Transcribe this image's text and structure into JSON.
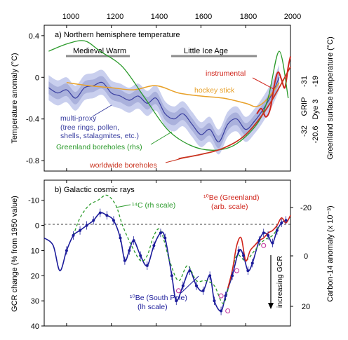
{
  "top_axis": {
    "ticks": [
      "1000",
      "1200",
      "1400",
      "1600",
      "1800",
      "2000"
    ]
  },
  "panel_a": {
    "title": "a) Northern hemisphere temperature",
    "ylabel_left": "Temperature anomaly (°C)",
    "ylabel_right": "Greenland surface temperature (°C)",
    "right_col_labels": [
      "GRIP",
      "Dye 3"
    ],
    "right_ticks_grip": [
      "-31",
      "-32"
    ],
    "right_ticks_dye3": [
      "-19",
      "-20.6"
    ],
    "bar_medieval": "Medieval Warm",
    "bar_lia": "Little Ice Age",
    "ann_instrumental": "instrumental",
    "ann_hockey": "hockey stick",
    "ann_multiproxy": "multi-proxy",
    "ann_multiproxy_sub1": "(tree rings, pollen,",
    "ann_multiproxy_sub2": "shells, stalagmites, etc.)",
    "ann_greenland": "Greenland boreholes (rhs)",
    "ann_worldwide": "worldwide boreholes"
  },
  "panel_b": {
    "title": "b) Galactic cosmic rays",
    "ylabel_left": "GCR change (% from 1950 value)",
    "ylabel_right": "Carbon-14 anomaly (x 10⁻³)",
    "ann_c14": "¹⁴C (rh scale)",
    "ann_be_greenland_1": "¹⁰Be (Greenland)",
    "ann_be_greenland_2": "(arb. scale)",
    "ann_be_south_1": "¹⁰Be (South Pole)",
    "ann_be_south_2": "(lh scale)",
    "ann_increasing": "increasing GCR"
  },
  "colors": {
    "instrumental": "#d0241b",
    "hockey": "#e8a12a",
    "multiproxy": "#3a3fa0",
    "multiproxy_band": "#aab1dc",
    "greenland": "#2a9a2a",
    "worldwide": "#c9331f",
    "bar": "#8c8c8c"
  },
  "chart_data": [
    {
      "type": "line",
      "title": "a) Northern hemisphere temperature",
      "xlabel": "",
      "ylabel": "Temperature anomaly (°C)",
      "xlim": [
        900,
        2000
      ],
      "ylim": [
        -0.9,
        0.5
      ],
      "x_ticks": [
        1000,
        1200,
        1400,
        1600,
        1800,
        2000
      ],
      "y_ticks": [
        0.4,
        0,
        -0.4,
        -0.8
      ],
      "series": [
        {
          "name": "multi-proxy",
          "points": [
            [
              920,
              -0.1
            ],
            [
              960,
              -0.15
            ],
            [
              1000,
              -0.12
            ],
            [
              1040,
              -0.2
            ],
            [
              1080,
              -0.1
            ],
            [
              1120,
              -0.08
            ],
            [
              1160,
              -0.05
            ],
            [
              1200,
              -0.15
            ],
            [
              1240,
              -0.18
            ],
            [
              1280,
              -0.22
            ],
            [
              1320,
              -0.18
            ],
            [
              1360,
              -0.25
            ],
            [
              1400,
              -0.2
            ],
            [
              1440,
              -0.35
            ],
            [
              1480,
              -0.4
            ],
            [
              1520,
              -0.35
            ],
            [
              1560,
              -0.45
            ],
            [
              1600,
              -0.55
            ],
            [
              1640,
              -0.5
            ],
            [
              1680,
              -0.62
            ],
            [
              1720,
              -0.45
            ],
            [
              1760,
              -0.4
            ],
            [
              1800,
              -0.5
            ],
            [
              1840,
              -0.42
            ],
            [
              1880,
              -0.3
            ],
            [
              1920,
              -0.15
            ],
            [
              1950,
              0.0
            ]
          ]
        },
        {
          "name": "hockey stick",
          "points": [
            [
              1000,
              -0.05
            ],
            [
              1100,
              -0.08
            ],
            [
              1200,
              -0.1
            ],
            [
              1300,
              -0.12
            ],
            [
              1400,
              -0.08
            ],
            [
              1500,
              -0.15
            ],
            [
              1600,
              -0.18
            ],
            [
              1700,
              -0.2
            ],
            [
              1800,
              -0.25
            ],
            [
              1850,
              -0.28
            ],
            [
              1900,
              -0.2
            ],
            [
              1950,
              -0.05
            ]
          ]
        },
        {
          "name": "instrumental",
          "points": [
            [
              1850,
              -0.35
            ],
            [
              1870,
              -0.3
            ],
            [
              1890,
              -0.38
            ],
            [
              1910,
              -0.3
            ],
            [
              1930,
              -0.05
            ],
            [
              1945,
              0.05
            ],
            [
              1960,
              -0.02
            ],
            [
              1975,
              -0.1
            ],
            [
              1990,
              0.1
            ],
            [
              2000,
              0.2
            ]
          ]
        },
        {
          "name": "Greenland boreholes (rhs)",
          "points": [
            [
              920,
              0.25
            ],
            [
              1000,
              0.32
            ],
            [
              1080,
              0.35
            ],
            [
              1150,
              0.25
            ],
            [
              1250,
              0.1
            ],
            [
              1350,
              -0.2
            ],
            [
              1450,
              -0.5
            ],
            [
              1550,
              -0.65
            ],
            [
              1650,
              -0.7
            ],
            [
              1750,
              -0.65
            ],
            [
              1850,
              -0.45
            ],
            [
              1900,
              -0.2
            ],
            [
              1950,
              0.25
            ],
            [
              1990,
              -0.2
            ]
          ]
        },
        {
          "name": "worldwide boreholes",
          "points": [
            [
              1500,
              -0.78
            ],
            [
              1600,
              -0.74
            ],
            [
              1700,
              -0.68
            ],
            [
              1800,
              -0.55
            ],
            [
              1900,
              -0.28
            ],
            [
              2000,
              0.1
            ]
          ]
        }
      ]
    },
    {
      "type": "line",
      "title": "b) Galactic cosmic rays",
      "xlabel": "",
      "ylabel": "GCR change (% from 1950 value)",
      "xlim": [
        900,
        2000
      ],
      "ylim": [
        40,
        -18
      ],
      "x_ticks": [
        1000,
        1200,
        1400,
        1600,
        1800,
        2000
      ],
      "y_ticks": [
        -10,
        0,
        10,
        20,
        30,
        40
      ],
      "y2_ticks": [
        -20,
        0,
        20
      ],
      "series": [
        {
          "name": "10Be (South Pole)",
          "points": [
            [
              900,
              5
            ],
            [
              940,
              8
            ],
            [
              970,
              18
            ],
            [
              1000,
              10
            ],
            [
              1030,
              4
            ],
            [
              1060,
              2
            ],
            [
              1090,
              0
            ],
            [
              1120,
              -2
            ],
            [
              1150,
              -5
            ],
            [
              1180,
              -4
            ],
            [
              1210,
              -2
            ],
            [
              1240,
              5
            ],
            [
              1260,
              14
            ],
            [
              1280,
              10
            ],
            [
              1300,
              6
            ],
            [
              1330,
              12
            ],
            [
              1360,
              16
            ],
            [
              1390,
              8
            ],
            [
              1420,
              3
            ],
            [
              1440,
              5
            ],
            [
              1470,
              20
            ],
            [
              1490,
              30
            ],
            [
              1520,
              24
            ],
            [
              1550,
              18
            ],
            [
              1580,
              24
            ],
            [
              1610,
              26
            ],
            [
              1640,
              20
            ],
            [
              1660,
              30
            ],
            [
              1690,
              34
            ],
            [
              1710,
              28
            ],
            [
              1740,
              20
            ],
            [
              1770,
              10
            ],
            [
              1790,
              12
            ],
            [
              1810,
              18
            ],
            [
              1830,
              15
            ],
            [
              1860,
              6
            ],
            [
              1880,
              3
            ],
            [
              1900,
              4
            ],
            [
              1920,
              7
            ],
            [
              1940,
              2
            ],
            [
              1960,
              -1
            ],
            [
              1980,
              -2
            ]
          ]
        },
        {
          "name": "14C (rh scale)",
          "points": [
            [
              1030,
              4
            ],
            [
              1060,
              -3
            ],
            [
              1100,
              -8
            ],
            [
              1140,
              -10
            ],
            [
              1180,
              -12
            ],
            [
              1220,
              -8
            ],
            [
              1250,
              0
            ],
            [
              1290,
              8
            ],
            [
              1330,
              14
            ],
            [
              1360,
              12
            ],
            [
              1390,
              4
            ],
            [
              1420,
              2
            ],
            [
              1460,
              14
            ],
            [
              1500,
              22
            ],
            [
              1540,
              16
            ],
            [
              1580,
              22
            ],
            [
              1620,
              22
            ],
            [
              1660,
              24
            ],
            [
              1700,
              31
            ],
            [
              1730,
              22
            ],
            [
              1760,
              12
            ],
            [
              1800,
              14
            ],
            [
              1840,
              10
            ],
            [
              1880,
              6
            ],
            [
              1920,
              4
            ],
            [
              1950,
              0
            ]
          ]
        },
        {
          "name": "10Be (Greenland)",
          "points": [
            [
              1720,
              25
            ],
            [
              1740,
              18
            ],
            [
              1760,
              8
            ],
            [
              1780,
              5
            ],
            [
              1800,
              14
            ],
            [
              1820,
              10
            ],
            [
              1840,
              8
            ],
            [
              1860,
              6
            ],
            [
              1880,
              5
            ],
            [
              1900,
              3
            ],
            [
              1920,
              2
            ],
            [
              1940,
              0
            ],
            [
              1960,
              -3
            ],
            [
              1980,
              -1
            ],
            [
              2000,
              -4
            ]
          ]
        }
      ]
    }
  ]
}
